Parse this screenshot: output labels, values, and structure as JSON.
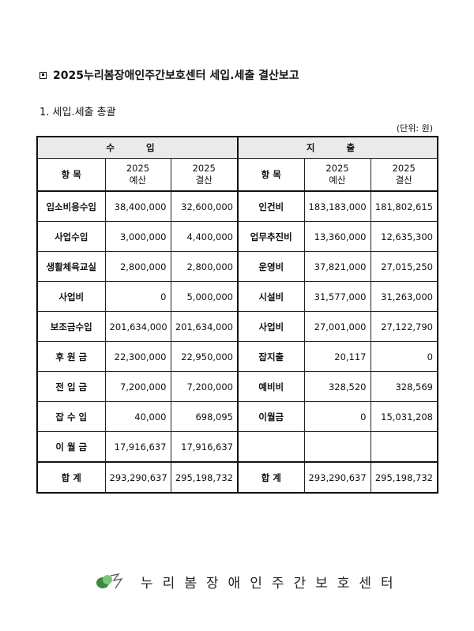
{
  "title": "2025누리봄장애인주간보호센터 세입.세출 결산보고",
  "section": "1. 세입.세출 총괄",
  "unit": "(단위: 원)",
  "table": {
    "income_header": "수 입",
    "expense_header": "지 출",
    "col_item": "항 목",
    "col_budget_year": "2025",
    "col_budget": "예산",
    "col_settle_year": "2025",
    "col_settle": "결산",
    "rows": [
      {
        "in": "입소비용수입",
        "in_b": "38,400,000",
        "in_s": "32,600,000",
        "ex": "인건비",
        "ex_b": "183,183,000",
        "ex_s": "181,802,615"
      },
      {
        "in": "사업수입",
        "in_b": "3,000,000",
        "in_s": "4,400,000",
        "ex": "업무추진비",
        "ex_b": "13,360,000",
        "ex_s": "12,635,300"
      },
      {
        "in": "생활체육교실",
        "in_b": "2,800,000",
        "in_s": "2,800,000",
        "ex": "운영비",
        "ex_b": "37,821,000",
        "ex_s": "27,015,250"
      },
      {
        "in": "사업비",
        "in_b": "0",
        "in_s": "5,000,000",
        "ex": "시설비",
        "ex_b": "31,577,000",
        "ex_s": "31,263,000"
      },
      {
        "in": "보조금수입",
        "in_b": "201,634,000",
        "in_s": "201,634,000",
        "ex": "사업비",
        "ex_b": "27,001,000",
        "ex_s": "27,122,790"
      },
      {
        "in": "후 원 금",
        "in_b": "22,300,000",
        "in_s": "22,950,000",
        "ex": "잡지출",
        "ex_b": "20,117",
        "ex_s": "0"
      },
      {
        "in": "전 입 금",
        "in_b": "7,200,000",
        "in_s": "7,200,000",
        "ex": "예비비",
        "ex_b": "328,520",
        "ex_s": "328,569"
      },
      {
        "in": "잡 수 입",
        "in_b": "40,000",
        "in_s": "698,095",
        "ex": "이월금",
        "ex_b": "0",
        "ex_s": "15,031,208"
      },
      {
        "in": "이 월 금",
        "in_b": "17,916,637",
        "in_s": "17,916,637",
        "ex": "",
        "ex_b": "",
        "ex_s": ""
      }
    ],
    "total": {
      "in": "합 계",
      "in_b": "293,290,637",
      "in_s": "295,198,732",
      "ex": "합 계",
      "ex_b": "293,290,637",
      "ex_s": "295,198,732"
    }
  },
  "footer": {
    "org": "누리봄장애인주간보호센터",
    "logo_icon": "leaf-bird-logo",
    "logo_colors": [
      "#3a8a3a",
      "#7cc47a"
    ]
  }
}
